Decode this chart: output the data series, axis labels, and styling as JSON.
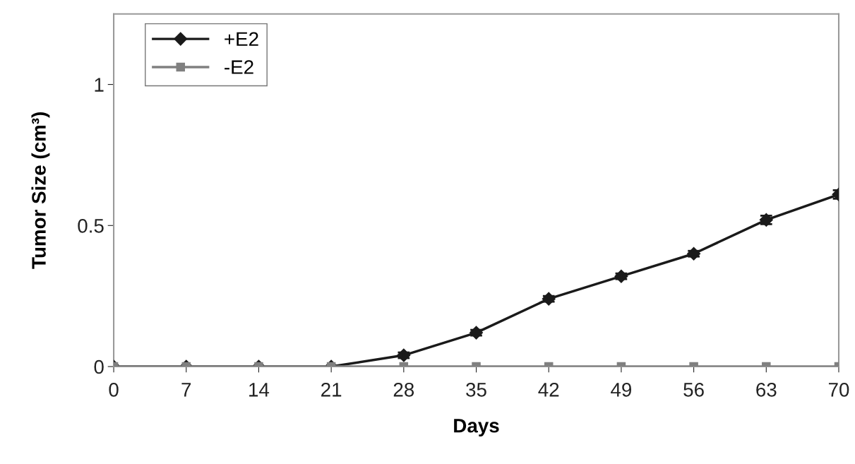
{
  "chart_data": {
    "type": "line",
    "xlabel": "Days",
    "ylabel": "Tumor Size (cm³)",
    "x": [
      0,
      7,
      14,
      21,
      28,
      35,
      42,
      49,
      56,
      63,
      70
    ],
    "series": [
      {
        "name": "+E2",
        "color": "#1a1a1a",
        "marker": "diamond",
        "values": [
          0,
          0,
          0,
          0,
          0.04,
          0.12,
          0.24,
          0.32,
          0.4,
          0.52,
          0.61
        ],
        "errors": [
          null,
          null,
          null,
          null,
          0.01,
          0.01,
          0.01,
          0.01,
          0.01,
          0.015,
          0.015
        ]
      },
      {
        "name": "-E2",
        "color": "#808080",
        "marker": "square",
        "values": [
          0,
          0,
          0,
          0,
          0,
          0,
          0,
          0,
          0,
          0,
          0
        ]
      }
    ],
    "xlim": [
      0,
      70
    ],
    "xticks": [
      0,
      7,
      14,
      21,
      28,
      35,
      42,
      49,
      56,
      63,
      70
    ],
    "ylim": [
      0,
      1.25
    ],
    "yticks": [
      0,
      0.5,
      1
    ],
    "grid": false,
    "legend": "top left",
    "line_style": "solid"
  }
}
